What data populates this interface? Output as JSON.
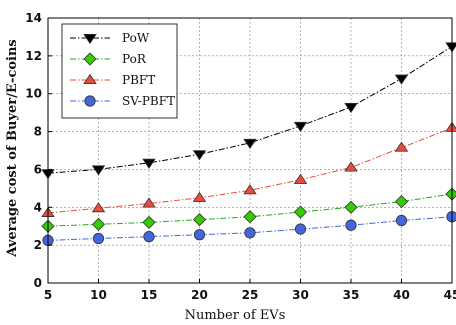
{
  "chart_data": {
    "type": "line",
    "title": "",
    "xlabel": "Number of  EVs",
    "ylabel": "Average cost of Buyer/E-coins",
    "x": [
      5,
      10,
      15,
      20,
      25,
      30,
      35,
      40,
      45
    ],
    "xlim": [
      5,
      45
    ],
    "ylim": [
      0,
      14
    ],
    "xticks": [
      5,
      10,
      15,
      20,
      25,
      30,
      35,
      40,
      45
    ],
    "yticks": [
      0,
      2,
      4,
      6,
      8,
      10,
      12,
      14
    ],
    "grid": true,
    "legend_position": "top-left",
    "series": [
      {
        "name": "PoW",
        "marker": "triangle-down",
        "color": "#000000",
        "line_color": "#000000",
        "values": [
          5.8,
          6.0,
          6.35,
          6.8,
          7.4,
          8.3,
          9.3,
          10.8,
          12.5
        ]
      },
      {
        "name": "PoR",
        "marker": "diamond",
        "color": "#33cc00",
        "line_color": "#22aa22",
        "values": [
          3.0,
          3.1,
          3.2,
          3.35,
          3.5,
          3.75,
          4.0,
          4.3,
          4.7
        ]
      },
      {
        "name": "PBFT",
        "marker": "triangle-up",
        "color": "#e84c3d",
        "line_color": "#e84c3d",
        "values": [
          3.7,
          3.95,
          4.2,
          4.5,
          4.9,
          5.45,
          6.1,
          7.15,
          8.2
        ]
      },
      {
        "name": "SV-PBFT",
        "marker": "circle",
        "color": "#4466dd",
        "line_color": "#4466dd",
        "values": [
          2.25,
          2.35,
          2.45,
          2.55,
          2.65,
          2.85,
          3.05,
          3.3,
          3.5
        ]
      }
    ]
  }
}
